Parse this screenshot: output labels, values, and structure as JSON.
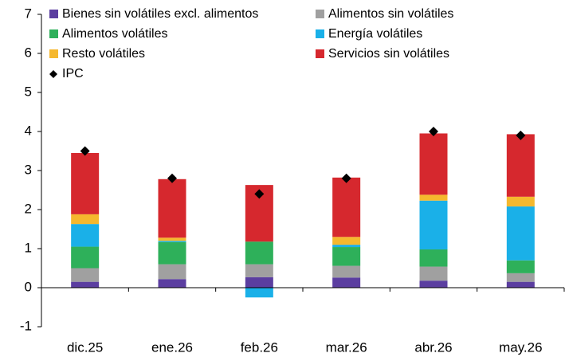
{
  "chart_data": {
    "type": "bar",
    "stacked": true,
    "categories": [
      "dic.25",
      "ene.26",
      "feb.26",
      "mar.26",
      "abr.26",
      "may.26"
    ],
    "series": [
      {
        "name": "Bienes sin volátiles excl. alimentos",
        "color": "#5b3ea0",
        "values": [
          0.15,
          0.22,
          0.27,
          0.26,
          0.18,
          0.15
        ]
      },
      {
        "name": "Alimentos sin volátiles",
        "color": "#a0a0a0",
        "values": [
          0.35,
          0.38,
          0.33,
          0.3,
          0.36,
          0.22
        ]
      },
      {
        "name": "Alimentos volátiles",
        "color": "#2eb05a",
        "values": [
          0.55,
          0.57,
          0.58,
          0.48,
          0.44,
          0.33
        ]
      },
      {
        "name": "Energía volátiles",
        "color": "#1ab0e8",
        "values": [
          0.58,
          0.03,
          -0.25,
          0.06,
          1.25,
          1.38
        ]
      },
      {
        "name": "Resto volátiles",
        "color": "#f5b82e",
        "values": [
          0.25,
          0.08,
          0.0,
          0.2,
          0.15,
          0.25
        ]
      },
      {
        "name": "Servicios sin volátiles",
        "color": "#d6282e",
        "values": [
          1.57,
          1.5,
          1.45,
          1.52,
          1.57,
          1.6
        ]
      },
      {
        "name": "IPC",
        "type": "scatter",
        "marker": "diamond",
        "color": "#000000",
        "values": [
          3.5,
          2.8,
          2.4,
          2.8,
          4.0,
          3.9
        ]
      }
    ],
    "ylim": [
      -1,
      7
    ],
    "yticks": [
      -1,
      0,
      1,
      2,
      3,
      4,
      5,
      6,
      7
    ],
    "grid": false,
    "legend": "top-left"
  }
}
